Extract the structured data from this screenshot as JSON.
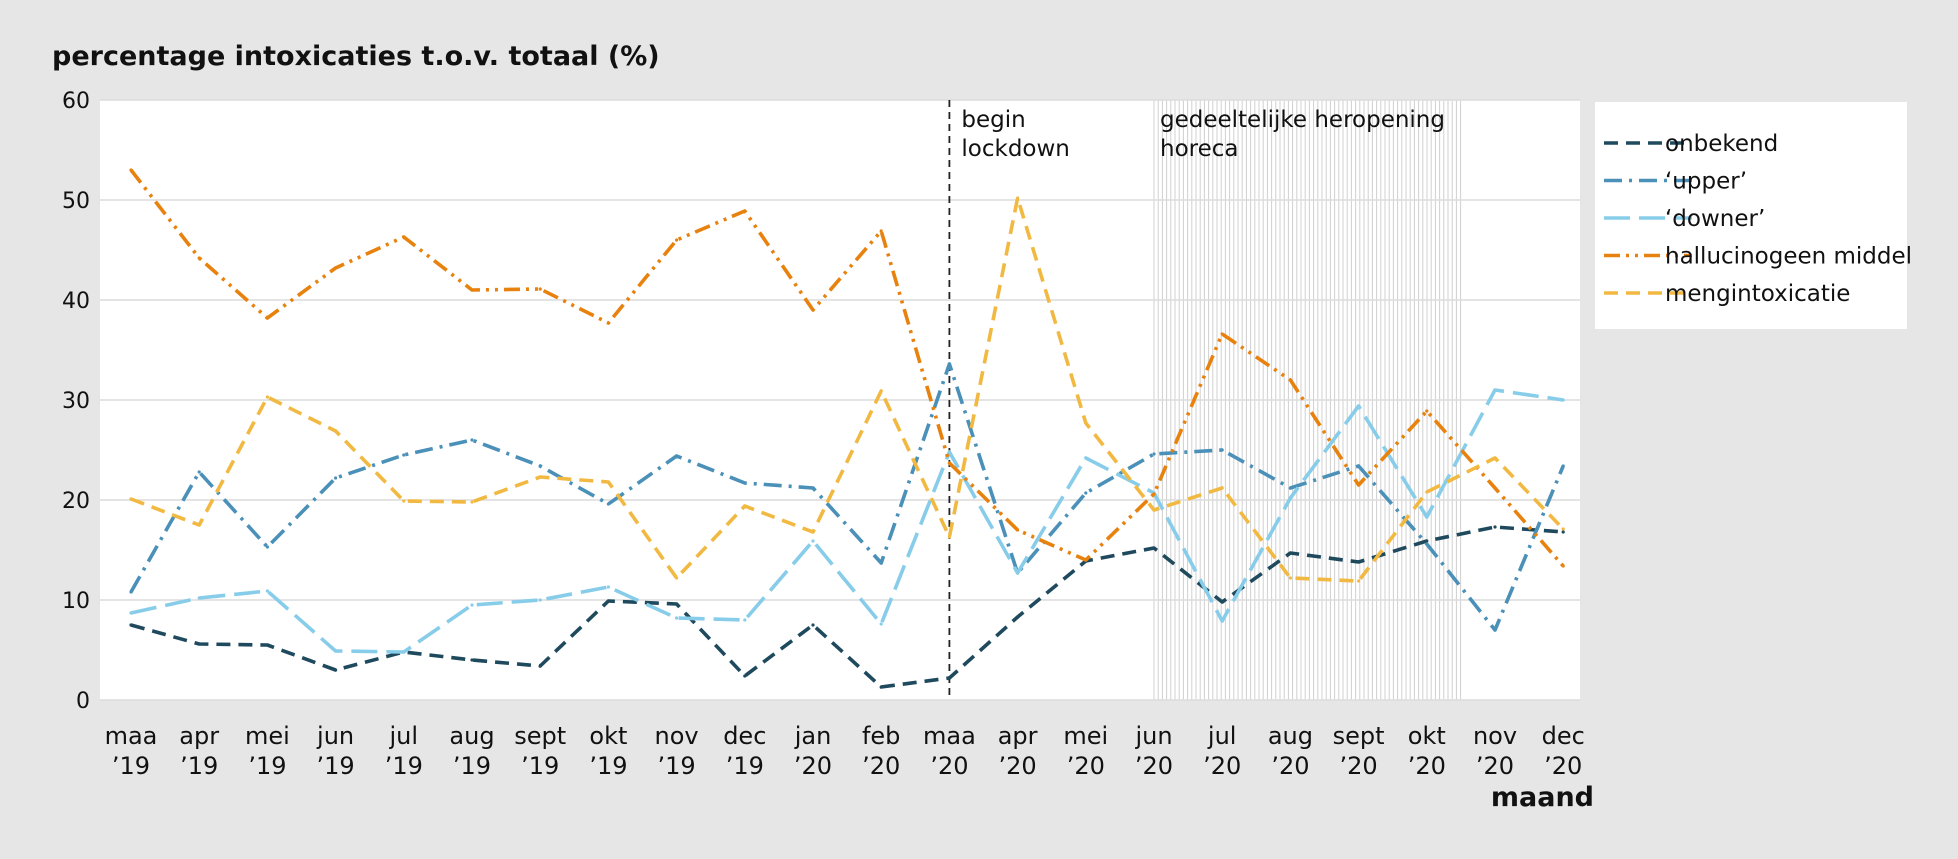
{
  "chart_data": {
    "type": "line",
    "title": "percentage intoxicaties t.o.v. totaal (%)",
    "xlabel": "maand",
    "ylabel": "",
    "ylim": [
      0,
      60
    ],
    "yticks": [
      "0",
      "10",
      "20",
      "30",
      "40",
      "50",
      "60"
    ],
    "grid": true,
    "legend_position": "right",
    "categories": [
      [
        "maa",
        "’19"
      ],
      [
        "apr",
        "’19"
      ],
      [
        "mei",
        "’19"
      ],
      [
        "jun",
        "’19"
      ],
      [
        "jul",
        "’19"
      ],
      [
        "aug",
        "’19"
      ],
      [
        "sept",
        "’19"
      ],
      [
        "okt",
        "’19"
      ],
      [
        "nov",
        "’19"
      ],
      [
        "dec",
        "’19"
      ],
      [
        "jan",
        "’20"
      ],
      [
        "feb",
        "’20"
      ],
      [
        "maa",
        "’20"
      ],
      [
        "apr",
        "’20"
      ],
      [
        "mei",
        "’20"
      ],
      [
        "jun",
        "’20"
      ],
      [
        "jul",
        "’20"
      ],
      [
        "aug",
        "’20"
      ],
      [
        "sept",
        "’20"
      ],
      [
        "okt",
        "’20"
      ],
      [
        "nov",
        "’20"
      ],
      [
        "dec",
        "’20"
      ]
    ],
    "series": [
      {
        "name": "onbekend",
        "color": "#1f4a5e",
        "dash": "dash",
        "values": [
          7.5,
          5.6,
          5.5,
          3.0,
          4.8,
          4.0,
          3.4,
          9.9,
          9.6,
          2.4,
          7.5,
          1.3,
          2.2,
          8.3,
          13.9,
          15.2,
          9.8,
          14.7,
          13.8,
          15.9,
          17.3,
          16.8
        ]
      },
      {
        "name": "‘upper’",
        "color": "#4a90b8",
        "dash": "dashdot",
        "values": [
          10.8,
          22.8,
          15.3,
          22.2,
          24.5,
          26.0,
          23.4,
          19.6,
          24.4,
          21.7,
          21.2,
          13.7,
          33.6,
          12.7,
          20.7,
          24.6,
          25.0,
          21.2,
          23.4,
          15.6,
          7.0,
          23.4
        ]
      },
      {
        "name": "‘downer’",
        "color": "#87cdea",
        "dash": "longdash",
        "values": [
          8.7,
          10.2,
          10.9,
          4.9,
          4.8,
          9.5,
          10.0,
          11.3,
          8.2,
          8.0,
          15.9,
          7.6,
          24.8,
          12.7,
          24.2,
          20.7,
          7.9,
          20.2,
          29.4,
          18.3,
          31.0,
          30.0
        ]
      },
      {
        "name": "hallucinogeen middel",
        "color": "#e8820e",
        "dash": "dashdotdot",
        "values": [
          53.0,
          44.2,
          38.2,
          43.2,
          46.3,
          41.0,
          41.1,
          37.7,
          46.0,
          48.9,
          39.0,
          46.9,
          23.7,
          17.0,
          14.0,
          20.6,
          36.6,
          32.0,
          21.5,
          28.9,
          21.2,
          13.4
        ]
      },
      {
        "name": "mengintoxicatie",
        "color": "#f2b942",
        "dash": "dash",
        "values": [
          20.1,
          17.5,
          30.3,
          26.9,
          19.9,
          19.8,
          22.3,
          21.8,
          12.2,
          19.4,
          16.8,
          30.9,
          16.3,
          50.2,
          27.7,
          19.0,
          21.2,
          12.2,
          11.9,
          20.8,
          24.2,
          17.1
        ]
      }
    ],
    "annotations": [
      {
        "text": [
          "begin",
          "lockdown"
        ],
        "at_category": 12,
        "style": "dashed vertical line"
      },
      {
        "text": [
          "gedeeltelijke heropening",
          "horeca"
        ],
        "from_category": 15,
        "to_category": 19.5,
        "style": "hatched band"
      }
    ]
  }
}
